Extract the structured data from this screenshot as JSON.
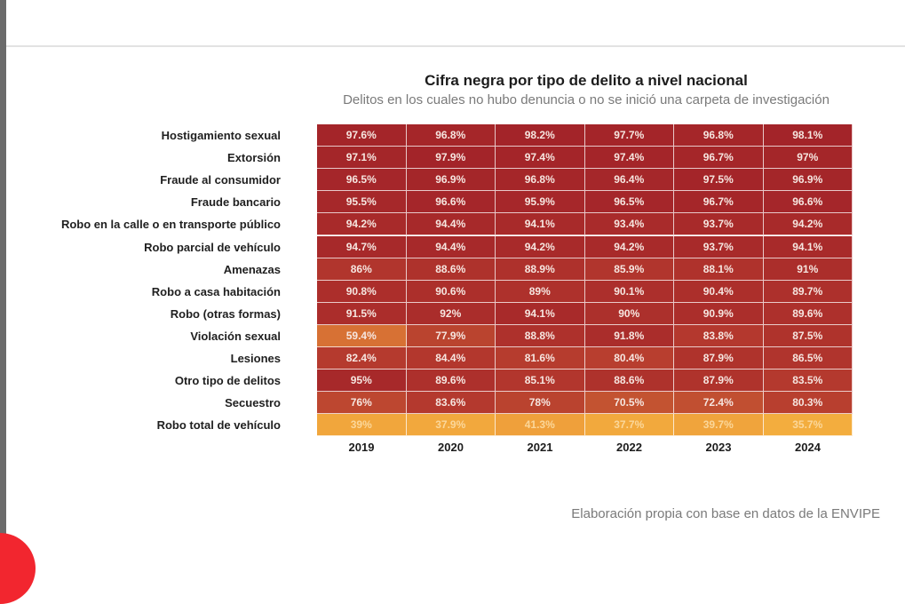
{
  "chart_data": {
    "type": "heatmap",
    "title": "Cifra negra por tipo de delito a nivel nacional",
    "subtitle": "Delitos en los cuales no hubo denuncia o no se inició una carpeta de investigación",
    "source": "Elaboración propia con base en datos de la ENVIPE",
    "x": [
      "2019",
      "2020",
      "2021",
      "2022",
      "2023",
      "2024"
    ],
    "y": [
      "Hostigamiento sexual",
      "Extorsión",
      "Fraude al consumidor",
      "Fraude bancario",
      "Robo en la calle o en transporte público",
      "Robo parcial de vehículo",
      "Amenazas",
      "Robo a casa habitación",
      "Robo (otras formas)",
      "Violación sexual",
      "Lesiones",
      "Otro tipo de delitos",
      "Secuestro",
      "Robo total de vehículo"
    ],
    "values": [
      [
        97.6,
        96.8,
        98.2,
        97.7,
        96.8,
        98.1
      ],
      [
        97.1,
        97.9,
        97.4,
        97.4,
        96.7,
        97
      ],
      [
        96.5,
        96.9,
        96.8,
        96.4,
        97.5,
        96.9
      ],
      [
        95.5,
        96.6,
        95.9,
        96.5,
        96.7,
        96.6
      ],
      [
        94.2,
        94.4,
        94.1,
        93.4,
        93.7,
        94.2
      ],
      [
        94.7,
        94.4,
        94.2,
        94.2,
        93.7,
        94.1
      ],
      [
        86,
        88.6,
        88.9,
        85.9,
        88.1,
        91
      ],
      [
        90.8,
        90.6,
        89,
        90.1,
        90.4,
        89.7
      ],
      [
        91.5,
        92,
        94.1,
        90,
        90.9,
        89.6
      ],
      [
        59.4,
        77.9,
        88.8,
        91.8,
        83.8,
        87.5
      ],
      [
        82.4,
        84.4,
        81.6,
        80.4,
        87.9,
        86.5
      ],
      [
        95,
        89.6,
        85.1,
        88.6,
        87.9,
        83.5
      ],
      [
        76,
        83.6,
        78,
        70.5,
        72.4,
        80.3
      ],
      [
        39,
        37.9,
        41.3,
        37.7,
        39.7,
        35.7
      ]
    ],
    "value_suffix": "%",
    "color_scale": {
      "low_value": 35.7,
      "high_value": 98.2,
      "stops": [
        "#f3ad3e",
        "#e98a36",
        "#c75a32",
        "#b53a2e",
        "#a32429"
      ]
    },
    "legend": "none",
    "grid": true
  }
}
